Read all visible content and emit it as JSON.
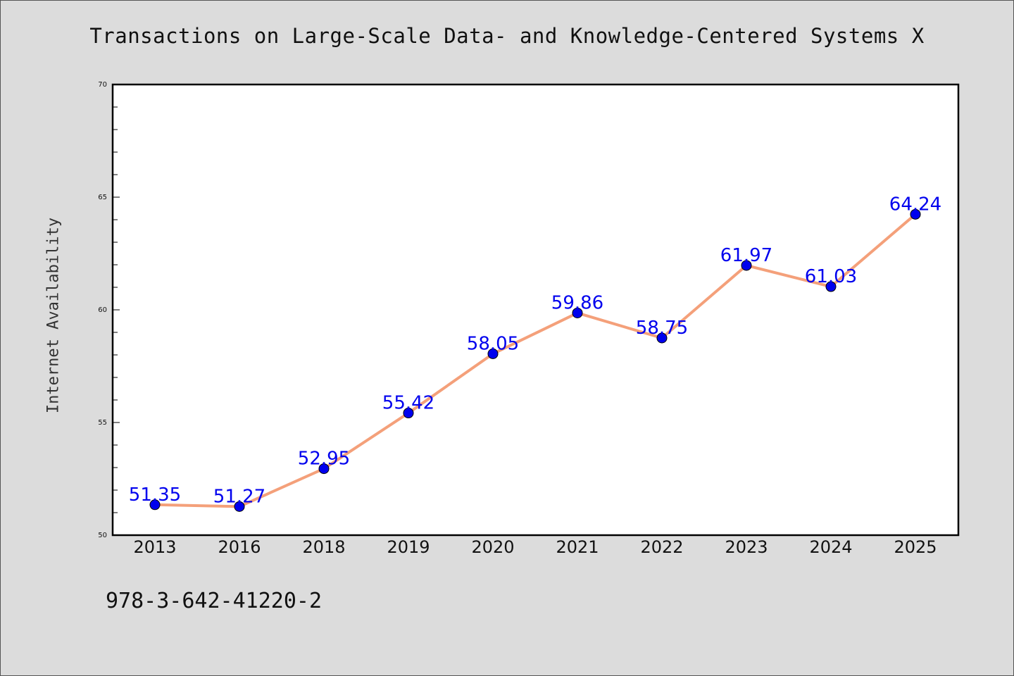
{
  "chart_data": {
    "type": "line",
    "title": "Transactions on Large-Scale Data- and Knowledge-Centered Systems X",
    "xlabel": "",
    "ylabel": "Internet Availability",
    "categories": [
      "2013",
      "2016",
      "2018",
      "2019",
      "2020",
      "2021",
      "2022",
      "2023",
      "2024",
      "2025"
    ],
    "series": [
      {
        "values": [
          51.35,
          51.27,
          52.95,
          55.42,
          58.05,
          59.86,
          58.75,
          61.97,
          61.03,
          64.24
        ],
        "line_color": "#f4a07a",
        "marker_color": "#0000ee"
      }
    ],
    "data_labels": [
      "51.35",
      "51.27",
      "52.95",
      "55.42",
      "58.05",
      "59.86",
      "58.75",
      "61.97",
      "61.03",
      "64.24"
    ],
    "ylim": [
      50,
      70
    ],
    "yticks": [
      "50",
      "55",
      "60",
      "65",
      "70"
    ],
    "grid": false,
    "legend": "none"
  },
  "footer": {
    "isbn": "978-3-642-41220-2"
  },
  "colors": {
    "background": "#dcdcdc",
    "plot_background": "#ffffff"
  }
}
